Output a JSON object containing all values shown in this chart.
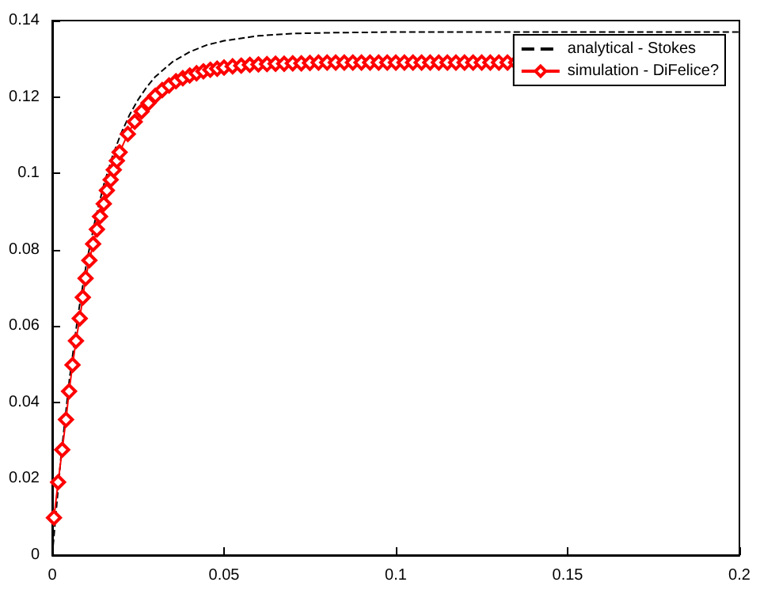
{
  "chart_data": {
    "type": "line",
    "xlim": [
      0,
      0.2
    ],
    "ylim": [
      0,
      0.14
    ],
    "xticks": [
      0,
      0.05,
      0.1,
      0.15,
      0.2
    ],
    "yticks": [
      0,
      0.02,
      0.04,
      0.06,
      0.08,
      0.1,
      0.12,
      0.14
    ],
    "grid": false,
    "legend": "top right",
    "series": [
      {
        "name": "analytical - Stokes",
        "color": "#000000",
        "marker": "none",
        "line_style": "dashed",
        "x": [
          0,
          0.0025,
          0.005,
          0.0075,
          0.01,
          0.0125,
          0.015,
          0.0175,
          0.02,
          0.0225,
          0.025,
          0.0275,
          0.03,
          0.035,
          0.04,
          0.045,
          0.05,
          0.06,
          0.07,
          0.08,
          0.1,
          0.12,
          0.2
        ],
        "values": [
          0,
          0.0254,
          0.046,
          0.0629,
          0.0767,
          0.0878,
          0.097,
          0.1044,
          0.1104,
          0.1153,
          0.1193,
          0.1226,
          0.1253,
          0.1292,
          0.1318,
          0.1336,
          0.1347,
          0.136,
          0.1366,
          0.1368,
          0.137,
          0.137,
          0.137
        ]
      },
      {
        "name": "simulation - DiFelice?",
        "color": "#ff0000",
        "marker": "diamond",
        "line_style": "solid",
        "x": [
          0.0005,
          0.0017,
          0.0029,
          0.004,
          0.0049,
          0.0059,
          0.0069,
          0.008,
          0.0089,
          0.0097,
          0.0108,
          0.0119,
          0.013,
          0.0139,
          0.015,
          0.0159,
          0.017,
          0.0179,
          0.0188,
          0.0196,
          0.022,
          0.024,
          0.026,
          0.028,
          0.03,
          0.032,
          0.034,
          0.036,
          0.038,
          0.04,
          0.042,
          0.044,
          0.046,
          0.048,
          0.05,
          0.0525,
          0.055,
          0.0575,
          0.06,
          0.0625,
          0.065,
          0.0675,
          0.07,
          0.0725,
          0.075,
          0.0775,
          0.08,
          0.0825,
          0.085,
          0.0875,
          0.09,
          0.0925,
          0.095,
          0.0975,
          0.1,
          0.1025,
          0.105,
          0.1075,
          0.11,
          0.1125,
          0.115,
          0.1175,
          0.12,
          0.1225,
          0.125,
          0.1275,
          0.13,
          0.1325,
          0.135
        ],
        "values": [
          0.0098,
          0.0191,
          0.0276,
          0.0355,
          0.0429,
          0.0498,
          0.0561,
          0.062,
          0.0675,
          0.0725,
          0.0772,
          0.0815,
          0.0853,
          0.0887,
          0.092,
          0.0955,
          0.0983,
          0.1009,
          0.1033,
          0.1055,
          0.1103,
          0.1135,
          0.1162,
          0.1184,
          0.1203,
          0.1218,
          0.123,
          0.1241,
          0.1249,
          0.1256,
          0.1262,
          0.1267,
          0.1271,
          0.1274,
          0.1277,
          0.128,
          0.1282,
          0.1284,
          0.1285,
          0.1286,
          0.1287,
          0.1287,
          0.1288,
          0.1288,
          0.1289,
          0.129,
          0.129,
          0.129,
          0.129,
          0.129,
          0.129,
          0.129,
          0.129,
          0.129,
          0.129,
          0.129,
          0.129,
          0.129,
          0.129,
          0.129,
          0.129,
          0.129,
          0.129,
          0.129,
          0.129,
          0.129,
          0.129,
          0.129,
          0.129
        ]
      }
    ]
  }
}
